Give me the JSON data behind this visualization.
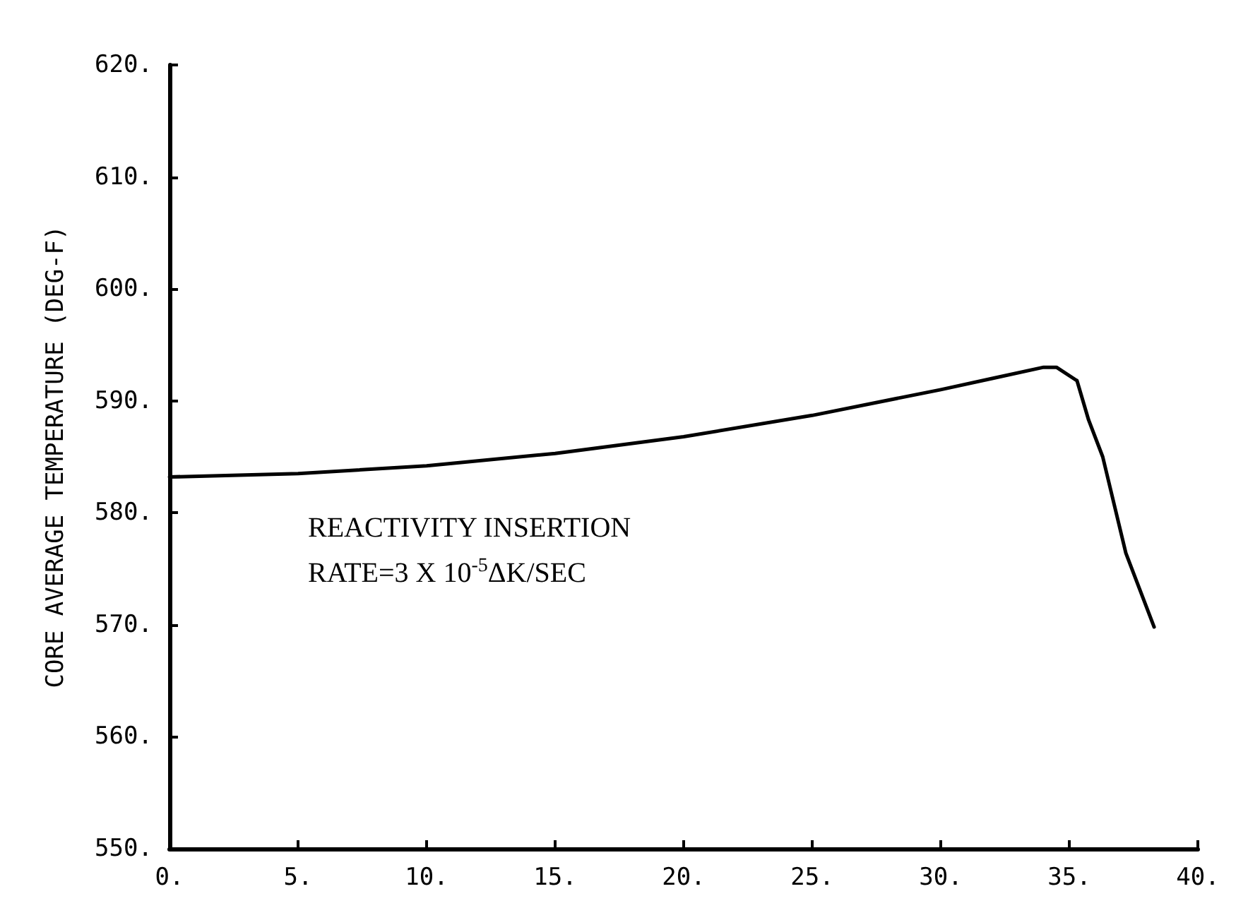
{
  "chart_data": {
    "type": "line",
    "ylabel": "CORE AVERAGE TEMPERATURE (DEG-F)",
    "annotations": [
      "REACTIVITY INSERTION\nRATE=3 X 10$^{-5}$ΔK/SEC"
    ],
    "x": [
      0,
      5,
      10,
      15,
      20,
      25,
      30,
      32,
      34,
      34.5,
      35.3,
      35.75,
      36.3,
      37.2,
      38.3
    ],
    "series": [
      {
        "color": "#000000",
        "values": [
          583.2,
          583.5,
          584.2,
          585.3,
          586.8,
          588.7,
          591.0,
          592.0,
          593.0,
          593.0,
          591.8,
          588.3,
          585.0,
          576.4,
          569.8
        ]
      }
    ],
    "xlim": [
      0,
      40
    ],
    "xticks": [
      {
        "value": 0,
        "label": "0."
      },
      {
        "value": 5,
        "label": "5."
      },
      {
        "value": 10,
        "label": "10."
      },
      {
        "value": 15,
        "label": "15."
      },
      {
        "value": 20,
        "label": "20."
      },
      {
        "value": 25,
        "label": "25."
      },
      {
        "value": 30,
        "label": "30."
      },
      {
        "value": 35,
        "label": "35."
      },
      {
        "value": 40,
        "label": "40."
      }
    ],
    "ylim": [
      550,
      620
    ],
    "yticks": [
      {
        "value": 550,
        "label": "550."
      },
      {
        "value": 560,
        "label": "560."
      },
      {
        "value": 570,
        "label": "570."
      },
      {
        "value": 580,
        "label": "580."
      },
      {
        "value": 590,
        "label": "590."
      },
      {
        "value": 600,
        "label": "600."
      },
      {
        "value": 610,
        "label": "610."
      },
      {
        "value": 620,
        "label": "620."
      }
    ],
    "grid": false,
    "marker": "none",
    "line_style": "solid"
  }
}
